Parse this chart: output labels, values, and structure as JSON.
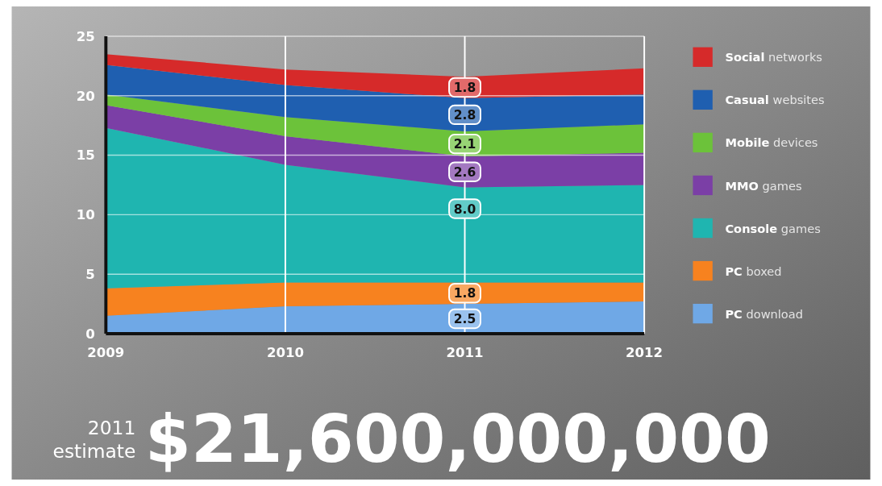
{
  "chart_data": {
    "type": "area",
    "stacked": true,
    "x": [
      2009,
      2010,
      2011,
      2012
    ],
    "xlim": [
      2009,
      2012
    ],
    "xticks": [
      2009,
      2010,
      2011,
      2012
    ],
    "ylim": [
      0,
      25
    ],
    "yticks": [
      0,
      5,
      10,
      15,
      20,
      25
    ],
    "grid": true,
    "legend": "right",
    "series": [
      {
        "name": "PC download",
        "color": "#6fa8e6",
        "values": [
          1.5,
          2.3,
          2.5,
          2.7
        ],
        "value_labels": [
          null,
          null,
          "2.5",
          null
        ]
      },
      {
        "name": "PC boxed",
        "color": "#f7821f",
        "values": [
          2.3,
          2.0,
          1.8,
          1.6
        ],
        "value_labels": [
          null,
          null,
          "1.8",
          null
        ]
      },
      {
        "name": "Console games",
        "color": "#1fb5b0",
        "values": [
          13.5,
          9.9,
          8.0,
          8.2
        ],
        "value_labels": [
          null,
          null,
          "8.0",
          null
        ]
      },
      {
        "name": "MMO games",
        "color": "#7b3fa6",
        "values": [
          1.9,
          2.4,
          2.6,
          2.7
        ],
        "value_labels": [
          null,
          null,
          "2.6",
          null
        ]
      },
      {
        "name": "Mobile devices",
        "color": "#6cc23a",
        "values": [
          0.9,
          1.6,
          2.1,
          2.4
        ],
        "value_labels": [
          null,
          null,
          "2.1",
          null
        ]
      },
      {
        "name": "Casual websites",
        "color": "#1f5fb0",
        "values": [
          2.5,
          2.7,
          2.8,
          2.5
        ],
        "value_labels": [
          null,
          null,
          "2.8",
          null
        ]
      },
      {
        "name": "Social networks",
        "color": "#d62a2a",
        "values": [
          0.9,
          1.3,
          1.8,
          2.2
        ],
        "value_labels": [
          null,
          null,
          "1.8",
          null
        ]
      }
    ],
    "annotations": [
      "2011 estimate",
      "$21,600,000,000"
    ]
  }
}
